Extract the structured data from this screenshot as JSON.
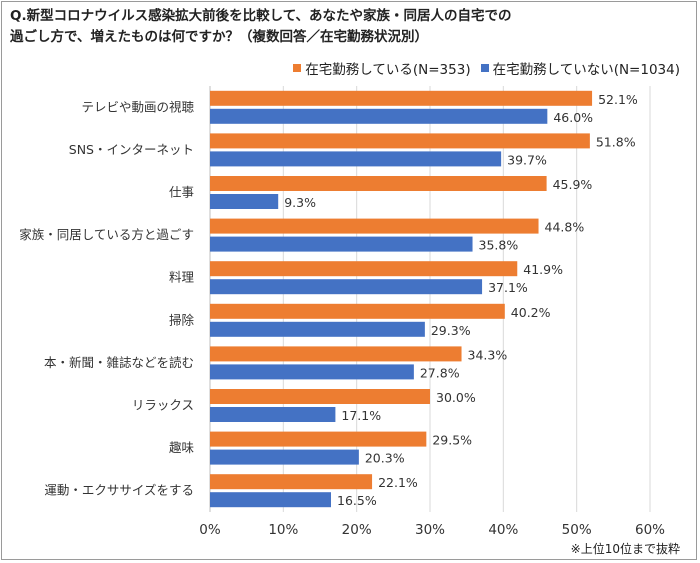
{
  "title_line1": "Q.新型コロナウイルス感染拡大前後を比較して、あなたや家族・同居人の自宅での",
  "title_line2": "過ごし方で、増えたものは何ですか？（複数回答／在宅勤務状況別）",
  "footnote": "※上位10位まで抜粋",
  "colors": {
    "series1": "#ED7D31",
    "series2": "#4472C4",
    "grid": "#d9d9d9",
    "axis": "#bfbfbf"
  },
  "chart_data": {
    "type": "bar",
    "orientation": "horizontal",
    "categories": [
      "テレビや動画の視聴",
      "SNS・インターネット",
      "仕事",
      "家族・同居している方と過ごす",
      "料理",
      "掃除",
      "本・新聞・雑誌などを読む",
      "リラックス",
      "趣味",
      "運動・エクササイズをする"
    ],
    "series": [
      {
        "name": "在宅勤務している(N=353)",
        "values": [
          52.1,
          51.8,
          45.9,
          44.8,
          41.9,
          40.2,
          34.3,
          30.0,
          29.5,
          22.1
        ]
      },
      {
        "name": "在宅勤務していない(N=1034)",
        "values": [
          46.0,
          39.7,
          9.3,
          35.8,
          37.1,
          29.3,
          27.8,
          17.1,
          20.3,
          16.5
        ]
      }
    ],
    "xlim": [
      0,
      60
    ],
    "xticks": [
      "0%",
      "10%",
      "20%",
      "30%",
      "40%",
      "50%",
      "60%"
    ],
    "value_suffix": "%",
    "grid": true,
    "legend_position": "top-right"
  }
}
